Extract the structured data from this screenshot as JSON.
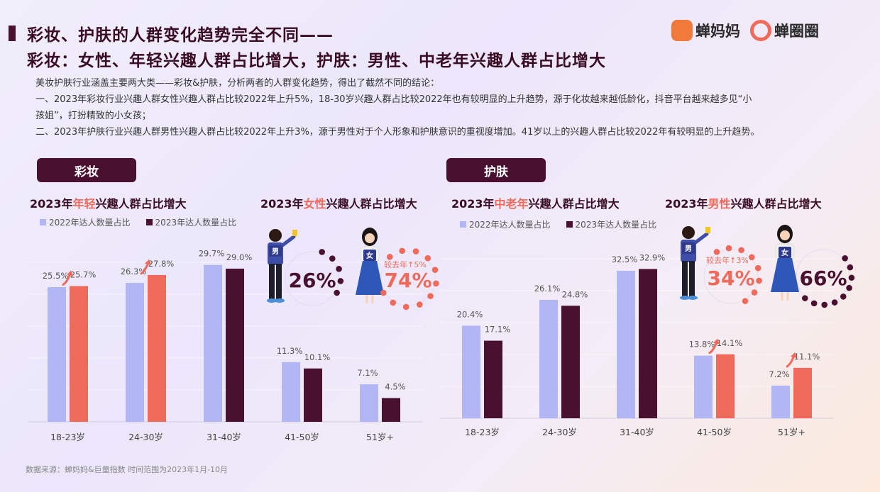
{
  "header": {
    "title_line1": "彩妆、护肤的人群变化趋势完全不同——",
    "title_line2": "彩妆：女性、年轻兴趣人群占比增大，护肤：男性、中老年兴趣人群占比增大",
    "logo1": "蝉妈妈",
    "logo2": "蝉圈圈"
  },
  "intro": [
    "美妆护肤行业涵盖主要两大类——彩妆&护肤，分析两者的人群变化趋势，得出了截然不同的结论：",
    "一、2023年彩妆行业兴趣人群女性兴趣人群占比较2022年上升5%，18-30岁兴趣人群占比较2022年也有较明显的上升趋势，源于化妆越来越低龄化，抖音平台越来越多见“小",
    "孩姐”，打扮精致的小女孩；",
    "二、2023年护肤行业兴趣人群男性兴趣人群占比较2022年上升3%，源于男性对于个人形象和护肤意识的重视度增加。41岁以上的兴趣人群占比较2022年有较明显的上升趋势。"
  ],
  "sections": {
    "makeup": {
      "label": "彩妆",
      "age_title_pre": "2023年",
      "age_title_hl": "年轻",
      "age_title_post": "兴趣人群占比增大",
      "gender_title_pre": "2023年",
      "gender_title_hl": "女性",
      "gender_title_post": "兴趣人群占比增大",
      "male_badge": "男",
      "female_badge": "女",
      "male_pct": "26%",
      "female_pct": "74%",
      "note": "较去年↑5%"
    },
    "skincare": {
      "label": "护肤",
      "age_title_pre": "2023年",
      "age_title_hl": "中老年",
      "age_title_post": "兴趣人群占比增大",
      "gender_title_pre": "2023年",
      "gender_title_hl": "男性",
      "gender_title_post": "兴趣人群占比增大",
      "male_badge": "男",
      "female_badge": "女",
      "male_pct": "34%",
      "female_pct": "66%",
      "note": "较去年↑3%"
    }
  },
  "legend": {
    "s2022": "2022年达人数量占比",
    "s2023": "2023年达人数量占比"
  },
  "colors": {
    "c2022": "#b3b6f4",
    "c2023_dark": "#4a1030",
    "c2023_coral": "#ef6a5a",
    "accent": "#ef6a5a"
  },
  "chart_data": [
    {
      "type": "bar",
      "name": "彩妆",
      "categories": [
        "18-23岁",
        "24-30岁",
        "31-40岁",
        "41-50岁",
        "51岁+"
      ],
      "series": [
        {
          "name": "2022年达人数量占比",
          "values": [
            25.5,
            26.3,
            29.7,
            11.3,
            7.1
          ]
        },
        {
          "name": "2023年达人数量占比",
          "values": [
            25.7,
            27.8,
            29.0,
            10.1,
            4.5
          ]
        }
      ],
      "labels_2022": [
        "25.5%",
        "26.3%",
        "29.7%",
        "11.3%",
        "7.1%"
      ],
      "labels_2023": [
        "25.7%",
        "27.8%",
        "29.0%",
        "10.1%",
        "4.5%"
      ],
      "highlight_2023": [
        true,
        true,
        false,
        false,
        false
      ]
    },
    {
      "type": "bar",
      "name": "护肤",
      "categories": [
        "18-23岁",
        "24-30岁",
        "31-40岁",
        "41-50岁",
        "51岁+"
      ],
      "series": [
        {
          "name": "2022年达人数量占比",
          "values": [
            20.4,
            26.1,
            32.5,
            13.8,
            7.2
          ]
        },
        {
          "name": "2023年达人数量占比",
          "values": [
            17.1,
            24.8,
            32.9,
            14.1,
            11.1
          ]
        }
      ],
      "labels_2022": [
        "20.4%",
        "26.1%",
        "32.5%",
        "13.8%",
        "7.2%"
      ],
      "labels_2023": [
        "17.1%",
        "24.8%",
        "32.9%",
        "14.1%",
        "11.1%"
      ],
      "highlight_2023": [
        false,
        false,
        false,
        true,
        true
      ]
    }
  ],
  "footer": "数据来源：蝉妈妈&巨量指数    时间范围为2023年1月-10月"
}
